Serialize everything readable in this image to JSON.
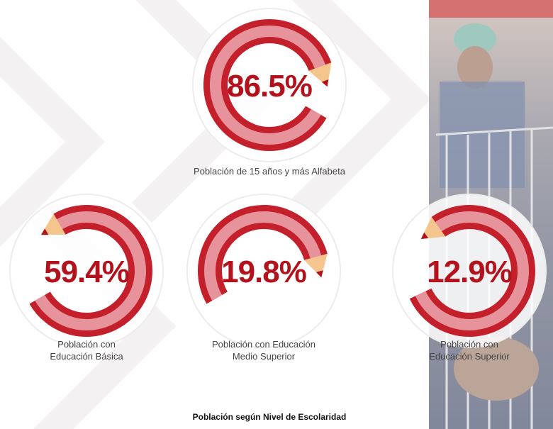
{
  "items": [
    {
      "value": "86.5%",
      "label": [
        "Población de 15 años y más Alfabeta"
      ]
    },
    {
      "value": "59.4%",
      "label": [
        "Población con",
        "Educación Básica"
      ]
    },
    {
      "value": "19.8%",
      "label": [
        "Población con Educación",
        "Medio Superior"
      ]
    },
    {
      "value": "12.9%",
      "label": [
        "Población con",
        "Educación Superior"
      ]
    }
  ],
  "footer": "Población según Nivel de Escolaridad"
}
